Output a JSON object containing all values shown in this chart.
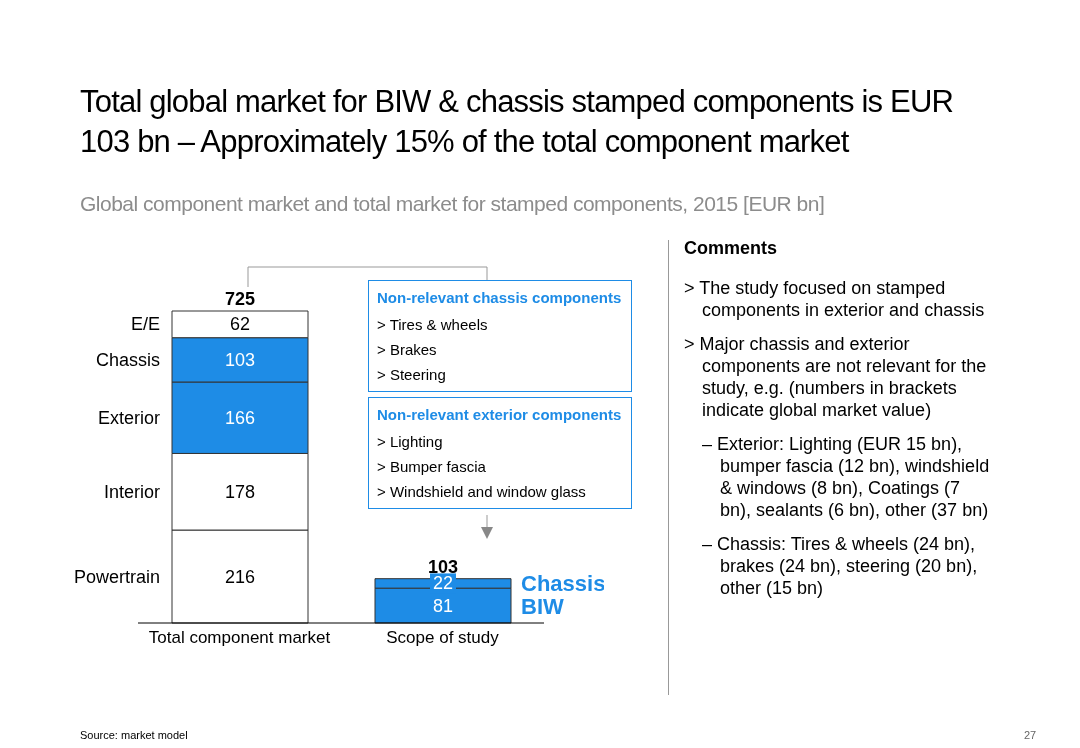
{
  "chart_data": {
    "type": "bar",
    "stacked": true,
    "title": "Total global market for BIW & chassis stamped components is EUR 103 bn – Approximately 15% of the total component market",
    "subtitle": "Global component market and total market for stamped components, 2015 [EUR bn]",
    "categories": [
      "Total component market",
      "Scope of study"
    ],
    "series": [
      {
        "name": "Powertrain",
        "color": "#ffffff",
        "values": [
          216,
          null
        ]
      },
      {
        "name": "Interior",
        "color": "#ffffff",
        "values": [
          178,
          null
        ]
      },
      {
        "name": "Exterior",
        "color": "#1e8ce6",
        "values": [
          166,
          null
        ]
      },
      {
        "name": "Chassis",
        "color": "#1e8ce6",
        "values": [
          103,
          null
        ]
      },
      {
        "name": "E/E",
        "color": "#ffffff",
        "values": [
          62,
          null
        ]
      },
      {
        "name": "BIW",
        "color": "#1e8ce6",
        "values": [
          null,
          81
        ]
      },
      {
        "name": "Chassis",
        "color": "#1e8ce6",
        "values": [
          null,
          22
        ]
      }
    ],
    "data_labels": true,
    "totals": [
      "725",
      "103"
    ],
    "legend": false,
    "grid": false,
    "annotations": [
      "Non-relevant chassis components",
      "> Tires & wheels",
      "> Brakes",
      "> Steering",
      "Non-relevant exterior components",
      "> Lighting",
      "> Bumper fascia",
      "> Windshield and window glass",
      "Comments",
      "> The study focused on stamped components in exterior and chassis",
      "> Major chassis and exterior components are not relevant for the study, e.g. (numbers in brackets indicate global market value)",
      "– Exterior: Lighting (EUR 15 bn), bumper fascia (12 bn), windshield & windows (8 bn), Coatings (7 bn), sealants (6 bn), other (37 bn)",
      "– Chassis: Tires & wheels (24 bn), brakes (24 bn), steering (20 bn), other (15 bn)",
      "Source: market model",
      "27"
    ]
  }
}
